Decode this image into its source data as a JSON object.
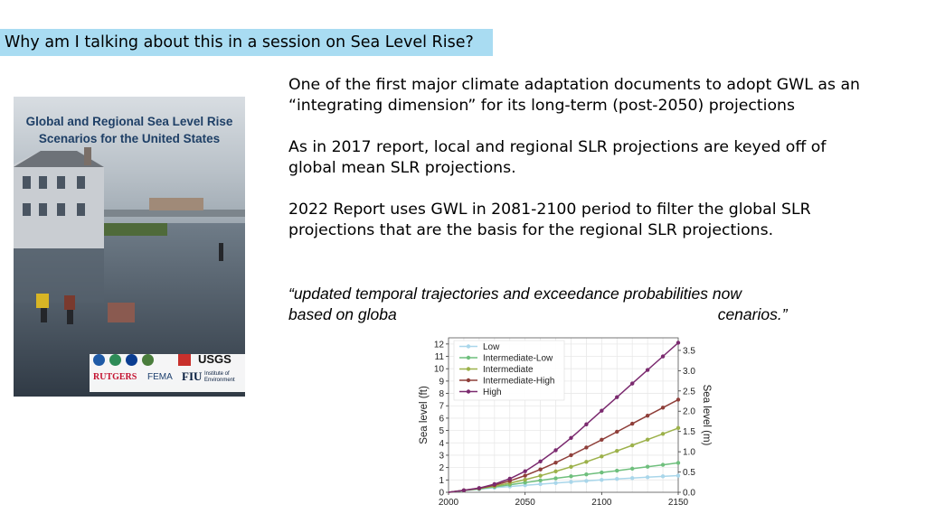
{
  "banner": {
    "title": "Why am I talking about this in a session on Sea Level Rise?"
  },
  "cover": {
    "title_line1": "Global and Regional Sea Level Rise",
    "title_line2": "Scenarios for the United States",
    "logos": [
      "NOAA",
      "EPA",
      "NASA",
      "USGS",
      "USACE",
      "RUTGERS",
      "FEMA",
      "FIU"
    ],
    "logo_texts": {
      "rutgers": "RUTGERS",
      "fema": "FEMA",
      "fiu": "FIU",
      "fiu_sub": "Institute of Environment",
      "usgs": "USGS"
    }
  },
  "body": {
    "para1": "One of the first major climate  adaptation documents to adopt GWL as an “integrating dimension” for its long-term (post-2050) projections",
    "para2": "As in 2017 report, local and regional SLR projections are keyed off of global mean SLR projections.",
    "para3": "2022 Report uses GWL in 2081-2100 period  to filter the global SLR projections  that are the basis  for the regional SLR projections.",
    "quote_line1": "“updated temporal trajectories and exceedance probabilities now",
    "quote_line2_start": "based on globa",
    "quote_line2_end": "cenarios.”"
  },
  "chart_data": {
    "type": "line",
    "xlabel": "",
    "ylabel": "Sea level (ft)",
    "y2label": "Sea level (m)",
    "xlim": [
      2000,
      2150
    ],
    "ylim": [
      0,
      12.5
    ],
    "y2lim": [
      0,
      3.81
    ],
    "x_ticks": [
      2000,
      2050,
      2100,
      2150
    ],
    "y_ticks": [
      0,
      1,
      2,
      3,
      4,
      5,
      6,
      7,
      8,
      9,
      10,
      11,
      12
    ],
    "y2_ticks": [
      "0.0",
      "0.5",
      "1.0",
      "1.5",
      "2.0",
      "2.5",
      "3.0",
      "3.5"
    ],
    "grid": true,
    "legend_position": "top-left",
    "x": [
      2000,
      2010,
      2020,
      2030,
      2040,
      2050,
      2060,
      2070,
      2080,
      2090,
      2100,
      2110,
      2120,
      2130,
      2140,
      2150
    ],
    "series": [
      {
        "name": "Low",
        "color": "#a9d6ea",
        "values": [
          0,
          0.13,
          0.25,
          0.37,
          0.47,
          0.57,
          0.66,
          0.75,
          0.84,
          0.92,
          1.0,
          1.08,
          1.15,
          1.22,
          1.29,
          1.35
        ]
      },
      {
        "name": "Intermediate-Low",
        "color": "#6fbf7d",
        "values": [
          0,
          0.14,
          0.28,
          0.44,
          0.61,
          0.79,
          0.96,
          1.13,
          1.29,
          1.45,
          1.6,
          1.75,
          1.91,
          2.07,
          2.22,
          2.38
        ]
      },
      {
        "name": "Intermediate",
        "color": "#9cb14a",
        "values": [
          0,
          0.15,
          0.31,
          0.5,
          0.74,
          1.02,
          1.34,
          1.69,
          2.06,
          2.46,
          2.9,
          3.35,
          3.8,
          4.26,
          4.73,
          5.2
        ]
      },
      {
        "name": "Intermediate-High",
        "color": "#8f3f3a",
        "values": [
          0,
          0.15,
          0.32,
          0.58,
          0.92,
          1.35,
          1.85,
          2.4,
          3.0,
          3.62,
          4.25,
          4.9,
          5.55,
          6.2,
          6.85,
          7.5
        ]
      },
      {
        "name": "High",
        "color": "#7b2a6f",
        "values": [
          0,
          0.16,
          0.34,
          0.66,
          1.1,
          1.7,
          2.5,
          3.4,
          4.4,
          5.5,
          6.6,
          7.7,
          8.8,
          9.9,
          11.0,
          12.1
        ]
      }
    ]
  }
}
